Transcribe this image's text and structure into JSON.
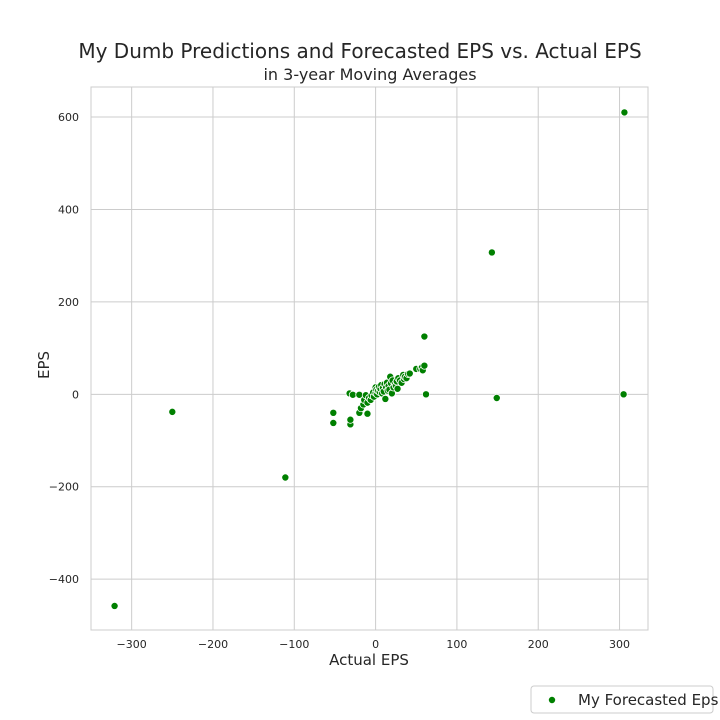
{
  "chart_data": {
    "type": "scatter",
    "title": "My Dumb Predictions and Forecasted EPS vs. Actual EPS",
    "subtitle": "in 3-year Moving Averages",
    "xlabel": "Actual EPS",
    "ylabel": "EPS",
    "xlim": [
      -350,
      335
    ],
    "ylim": [
      -510,
      665
    ],
    "x_ticks": [
      -300,
      -200,
      -100,
      0,
      100,
      200,
      300
    ],
    "y_ticks": [
      -400,
      -200,
      0,
      200,
      400,
      600
    ],
    "x_tick_labels": [
      "−300",
      "−200",
      "−100",
      "0",
      "100",
      "200",
      "300"
    ],
    "y_tick_labels": [
      "−400",
      "−200",
      "0",
      "200",
      "400",
      "600"
    ],
    "grid": true,
    "legend": "bottom-right, outside",
    "series": [
      {
        "name": "My Forecasted Eps",
        "color": "#008000",
        "points": [
          [
            -321,
            -458
          ],
          [
            -250,
            -38
          ],
          [
            -111,
            -180
          ],
          [
            -52,
            -40
          ],
          [
            -52,
            -62
          ],
          [
            -31,
            -65
          ],
          [
            -31,
            -55
          ],
          [
            -32,
            2
          ],
          [
            -28,
            -1
          ],
          [
            -20,
            -1
          ],
          [
            -20,
            -40
          ],
          [
            -18,
            -30
          ],
          [
            -15,
            -22
          ],
          [
            -14,
            -12
          ],
          [
            -12,
            -2
          ],
          [
            -10,
            -42
          ],
          [
            -10,
            -18
          ],
          [
            -8,
            -8
          ],
          [
            -6,
            -12
          ],
          [
            -5,
            -2
          ],
          [
            -3,
            4
          ],
          [
            -2,
            -5
          ],
          [
            0,
            3
          ],
          [
            0,
            15
          ],
          [
            1,
            10
          ],
          [
            2,
            0
          ],
          [
            3,
            8
          ],
          [
            4,
            16
          ],
          [
            5,
            5
          ],
          [
            6,
            12
          ],
          [
            7,
            20
          ],
          [
            8,
            2
          ],
          [
            9,
            14
          ],
          [
            10,
            6
          ],
          [
            11,
            22
          ],
          [
            12,
            -10
          ],
          [
            13,
            15
          ],
          [
            14,
            25
          ],
          [
            15,
            8
          ],
          [
            16,
            18
          ],
          [
            17,
            10
          ],
          [
            18,
            38
          ],
          [
            19,
            24
          ],
          [
            20,
            2
          ],
          [
            21,
            30
          ],
          [
            22,
            15
          ],
          [
            24,
            22
          ],
          [
            25,
            18
          ],
          [
            26,
            28
          ],
          [
            27,
            12
          ],
          [
            28,
            35
          ],
          [
            30,
            30
          ],
          [
            32,
            25
          ],
          [
            34,
            42
          ],
          [
            35,
            33
          ],
          [
            36,
            38
          ],
          [
            38,
            35
          ],
          [
            40,
            44
          ],
          [
            42,
            45
          ],
          [
            50,
            55
          ],
          [
            55,
            55
          ],
          [
            57,
            58
          ],
          [
            58,
            52
          ],
          [
            60,
            62
          ],
          [
            60,
            125
          ],
          [
            62,
            0
          ],
          [
            143,
            307
          ],
          [
            149,
            -8
          ],
          [
            305,
            0
          ],
          [
            306,
            610
          ]
        ]
      }
    ]
  }
}
